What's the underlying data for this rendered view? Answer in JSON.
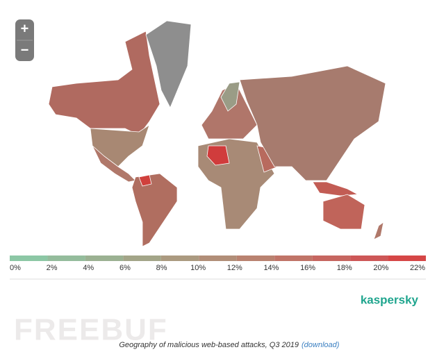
{
  "map": {
    "zoom_in": "+",
    "zoom_out": "−",
    "legend": {
      "ticks": [
        {
          "value": 0,
          "label": "0%"
        },
        {
          "value": 2,
          "label": "2%"
        },
        {
          "value": 4,
          "label": "4%"
        },
        {
          "value": 6,
          "label": "6%"
        },
        {
          "value": 8,
          "label": "8%"
        },
        {
          "value": 10,
          "label": "10%"
        },
        {
          "value": 12,
          "label": "12%"
        },
        {
          "value": 14,
          "label": "14%"
        },
        {
          "value": 16,
          "label": "16%"
        },
        {
          "value": 18,
          "label": "18%"
        },
        {
          "value": 20,
          "label": "20%"
        },
        {
          "value": 22,
          "label": "22%"
        }
      ],
      "colors": [
        "#8cc7a5",
        "#94bc9c",
        "#9bb192",
        "#a3a588",
        "#ab9a80",
        "#b18e78",
        "#b98270",
        "#c07468",
        "#c66660",
        "#cd5757",
        "#d54646"
      ]
    }
  },
  "brand": "kaspersky",
  "caption": {
    "text": "Geography of malicious web-based attacks, Q3 2019",
    "link": "(download)"
  },
  "watermark": "FREEBUF"
}
